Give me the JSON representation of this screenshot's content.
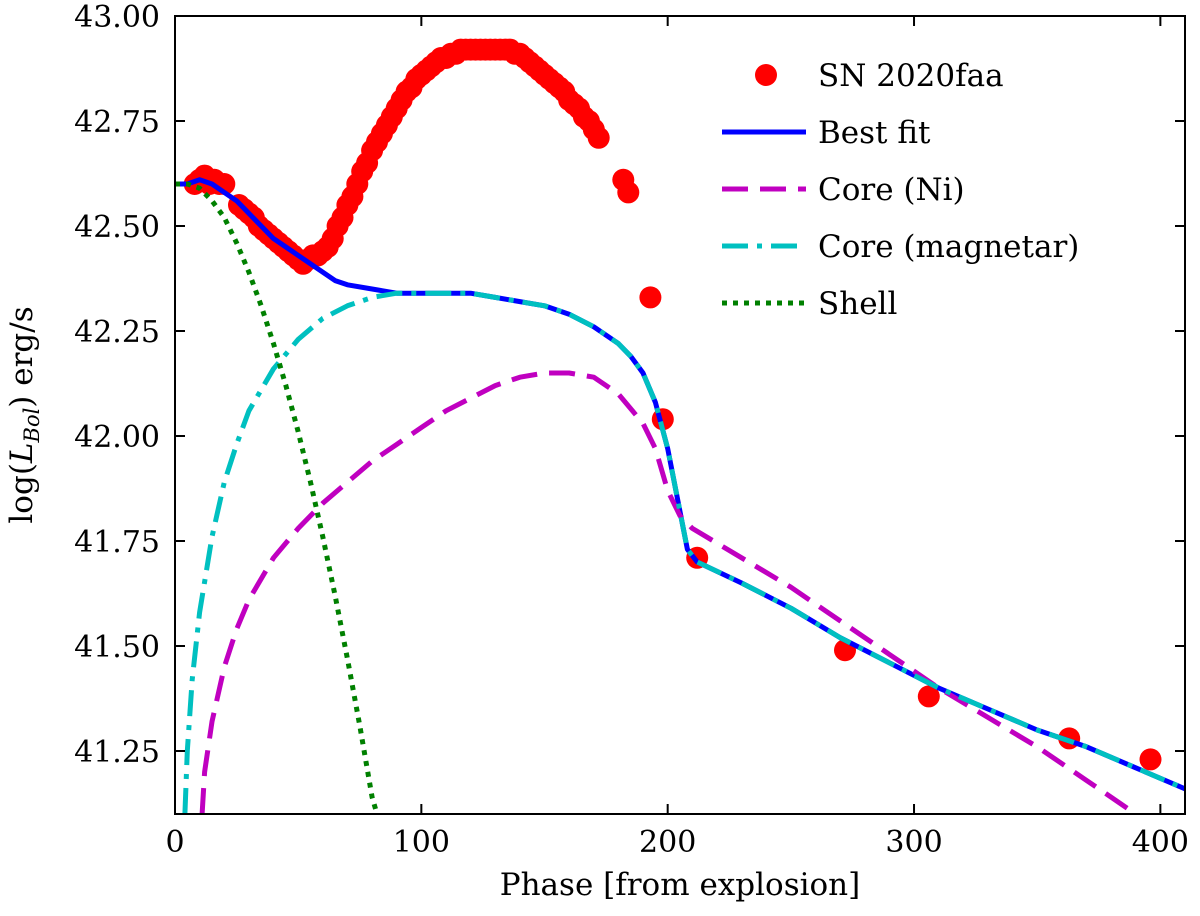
{
  "chart_data": {
    "type": "line",
    "xlabel": "Phase [from explosion]",
    "ylabel_prefix": "log(",
    "ylabel_symbol": "L",
    "ylabel_subscript": "Bol",
    "ylabel_suffix": ") erg/s",
    "xlim": [
      0,
      410
    ],
    "ylim": [
      41.1,
      43.0
    ],
    "xticks": [
      0,
      100,
      200,
      300,
      400
    ],
    "yticks": [
      41.25,
      41.5,
      41.75,
      42.0,
      42.25,
      42.5,
      42.75,
      43.0
    ],
    "xtick_labels": [
      "0",
      "100",
      "200",
      "300",
      "400"
    ],
    "ytick_labels": [
      "41.25",
      "41.50",
      "41.75",
      "42.00",
      "42.25",
      "42.50",
      "42.75",
      "43.00"
    ],
    "grid": false,
    "legend_position": "top-right",
    "series": [
      {
        "name": "SN 2020faa",
        "kind": "points",
        "color": "#ff0000",
        "points": [
          [
            8,
            42.6
          ],
          [
            10,
            42.61
          ],
          [
            12,
            42.62
          ],
          [
            14,
            42.6
          ],
          [
            16,
            42.61
          ],
          [
            18,
            42.6
          ],
          [
            20,
            42.6
          ],
          [
            26,
            42.55
          ],
          [
            28,
            42.54
          ],
          [
            30,
            42.53
          ],
          [
            32,
            42.52
          ],
          [
            34,
            42.5
          ],
          [
            36,
            42.49
          ],
          [
            38,
            42.48
          ],
          [
            40,
            42.47
          ],
          [
            42,
            42.46
          ],
          [
            44,
            42.45
          ],
          [
            46,
            42.44
          ],
          [
            48,
            42.43
          ],
          [
            50,
            42.42
          ],
          [
            52,
            42.41
          ],
          [
            54,
            42.42
          ],
          [
            56,
            42.43
          ],
          [
            58,
            42.43
          ],
          [
            60,
            42.44
          ],
          [
            62,
            42.45
          ],
          [
            64,
            42.47
          ],
          [
            66,
            42.5
          ],
          [
            68,
            42.52
          ],
          [
            70,
            42.55
          ],
          [
            72,
            42.57
          ],
          [
            74,
            42.6
          ],
          [
            76,
            42.63
          ],
          [
            78,
            42.65
          ],
          [
            80,
            42.68
          ],
          [
            82,
            42.7
          ],
          [
            84,
            42.72
          ],
          [
            86,
            42.74
          ],
          [
            88,
            42.76
          ],
          [
            90,
            42.78
          ],
          [
            92,
            42.8
          ],
          [
            94,
            42.82
          ],
          [
            96,
            42.83
          ],
          [
            98,
            42.85
          ],
          [
            100,
            42.86
          ],
          [
            102,
            42.87
          ],
          [
            104,
            42.88
          ],
          [
            106,
            42.89
          ],
          [
            108,
            42.9
          ],
          [
            110,
            42.9
          ],
          [
            112,
            42.91
          ],
          [
            114,
            42.91
          ],
          [
            116,
            42.92
          ],
          [
            118,
            42.92
          ],
          [
            120,
            42.92
          ],
          [
            122,
            42.92
          ],
          [
            124,
            42.92
          ],
          [
            126,
            42.92
          ],
          [
            128,
            42.92
          ],
          [
            130,
            42.92
          ],
          [
            132,
            42.92
          ],
          [
            134,
            42.92
          ],
          [
            136,
            42.92
          ],
          [
            138,
            42.91
          ],
          [
            140,
            42.91
          ],
          [
            142,
            42.9
          ],
          [
            144,
            42.89
          ],
          [
            146,
            42.88
          ],
          [
            148,
            42.87
          ],
          [
            150,
            42.86
          ],
          [
            152,
            42.85
          ],
          [
            154,
            42.84
          ],
          [
            156,
            42.83
          ],
          [
            158,
            42.82
          ],
          [
            160,
            42.8
          ],
          [
            162,
            42.79
          ],
          [
            164,
            42.78
          ],
          [
            166,
            42.76
          ],
          [
            168,
            42.75
          ],
          [
            170,
            42.73
          ],
          [
            172,
            42.71
          ],
          [
            182,
            42.61
          ],
          [
            184,
            42.58
          ],
          [
            193,
            42.33
          ],
          [
            198,
            42.04
          ],
          [
            212,
            41.71
          ],
          [
            272,
            41.49
          ],
          [
            306,
            41.38
          ],
          [
            363,
            41.28
          ],
          [
            396,
            41.23
          ]
        ]
      },
      {
        "name": "Best fit",
        "kind": "line",
        "color": "#0000ff",
        "style": "solid",
        "points": [
          [
            0,
            42.6
          ],
          [
            5,
            42.6
          ],
          [
            10,
            42.61
          ],
          [
            15,
            42.6
          ],
          [
            20,
            42.58
          ],
          [
            25,
            42.56
          ],
          [
            30,
            42.53
          ],
          [
            35,
            42.5
          ],
          [
            40,
            42.47
          ],
          [
            45,
            42.45
          ],
          [
            50,
            42.43
          ],
          [
            55,
            42.41
          ],
          [
            60,
            42.39
          ],
          [
            65,
            42.37
          ],
          [
            70,
            42.36
          ],
          [
            80,
            42.35
          ],
          [
            90,
            42.34
          ],
          [
            100,
            42.34
          ],
          [
            110,
            42.34
          ],
          [
            120,
            42.34
          ],
          [
            130,
            42.33
          ],
          [
            140,
            42.32
          ],
          [
            150,
            42.31
          ],
          [
            160,
            42.29
          ],
          [
            170,
            42.26
          ],
          [
            180,
            42.22
          ],
          [
            185,
            42.19
          ],
          [
            190,
            42.15
          ],
          [
            195,
            42.08
          ],
          [
            200,
            41.97
          ],
          [
            205,
            41.82
          ],
          [
            208,
            41.73
          ],
          [
            212,
            41.7
          ],
          [
            230,
            41.65
          ],
          [
            250,
            41.59
          ],
          [
            270,
            41.52
          ],
          [
            290,
            41.46
          ],
          [
            310,
            41.4
          ],
          [
            330,
            41.35
          ],
          [
            350,
            41.3
          ],
          [
            370,
            41.26
          ],
          [
            390,
            41.21
          ],
          [
            410,
            41.16
          ]
        ]
      },
      {
        "name": "Core (Ni)",
        "kind": "line",
        "color": "#c000c0",
        "style": "dashed",
        "points": [
          [
            11,
            41.1
          ],
          [
            12,
            41.2
          ],
          [
            15,
            41.32
          ],
          [
            20,
            41.45
          ],
          [
            25,
            41.54
          ],
          [
            30,
            41.61
          ],
          [
            40,
            41.71
          ],
          [
            50,
            41.78
          ],
          [
            60,
            41.84
          ],
          [
            70,
            41.89
          ],
          [
            80,
            41.94
          ],
          [
            90,
            41.98
          ],
          [
            100,
            42.02
          ],
          [
            110,
            42.06
          ],
          [
            120,
            42.09
          ],
          [
            130,
            42.12
          ],
          [
            140,
            42.14
          ],
          [
            150,
            42.15
          ],
          [
            160,
            42.15
          ],
          [
            170,
            42.14
          ],
          [
            180,
            42.1
          ],
          [
            190,
            42.03
          ],
          [
            195,
            41.97
          ],
          [
            200,
            41.87
          ],
          [
            205,
            41.81
          ],
          [
            210,
            41.78
          ],
          [
            230,
            41.71
          ],
          [
            250,
            41.64
          ],
          [
            270,
            41.56
          ],
          [
            290,
            41.48
          ],
          [
            310,
            41.4
          ],
          [
            330,
            41.33
          ],
          [
            350,
            41.26
          ],
          [
            370,
            41.18
          ],
          [
            390,
            41.1
          ]
        ]
      },
      {
        "name": "Core (magnetar)",
        "kind": "line",
        "color": "#00c0c0",
        "style": "dashdot",
        "points": [
          [
            4,
            41.1
          ],
          [
            5,
            41.25
          ],
          [
            7,
            41.42
          ],
          [
            10,
            41.58
          ],
          [
            15,
            41.76
          ],
          [
            20,
            41.89
          ],
          [
            25,
            41.98
          ],
          [
            30,
            42.06
          ],
          [
            40,
            42.16
          ],
          [
            50,
            42.23
          ],
          [
            60,
            42.28
          ],
          [
            70,
            42.31
          ],
          [
            80,
            42.33
          ],
          [
            90,
            42.34
          ],
          [
            100,
            42.34
          ],
          [
            110,
            42.34
          ],
          [
            120,
            42.34
          ],
          [
            130,
            42.33
          ],
          [
            140,
            42.32
          ],
          [
            150,
            42.31
          ],
          [
            160,
            42.29
          ],
          [
            170,
            42.26
          ],
          [
            180,
            42.22
          ],
          [
            185,
            42.19
          ],
          [
            190,
            42.15
          ],
          [
            195,
            42.08
          ],
          [
            200,
            41.97
          ],
          [
            205,
            41.82
          ],
          [
            208,
            41.73
          ],
          [
            212,
            41.7
          ],
          [
            230,
            41.65
          ],
          [
            250,
            41.59
          ],
          [
            270,
            41.52
          ],
          [
            290,
            41.46
          ],
          [
            310,
            41.4
          ],
          [
            330,
            41.35
          ],
          [
            350,
            41.3
          ],
          [
            370,
            41.26
          ],
          [
            390,
            41.21
          ],
          [
            410,
            41.16
          ]
        ]
      },
      {
        "name": "Shell",
        "kind": "line",
        "color": "#008000",
        "style": "dotted",
        "points": [
          [
            0,
            42.6
          ],
          [
            5,
            42.6
          ],
          [
            10,
            42.59
          ],
          [
            15,
            42.56
          ],
          [
            20,
            42.52
          ],
          [
            25,
            42.46
          ],
          [
            30,
            42.39
          ],
          [
            35,
            42.31
          ],
          [
            40,
            42.22
          ],
          [
            45,
            42.12
          ],
          [
            50,
            42.01
          ],
          [
            55,
            41.89
          ],
          [
            60,
            41.76
          ],
          [
            65,
            41.62
          ],
          [
            70,
            41.47
          ],
          [
            75,
            41.31
          ],
          [
            80,
            41.14
          ],
          [
            82,
            41.1
          ]
        ]
      }
    ]
  }
}
